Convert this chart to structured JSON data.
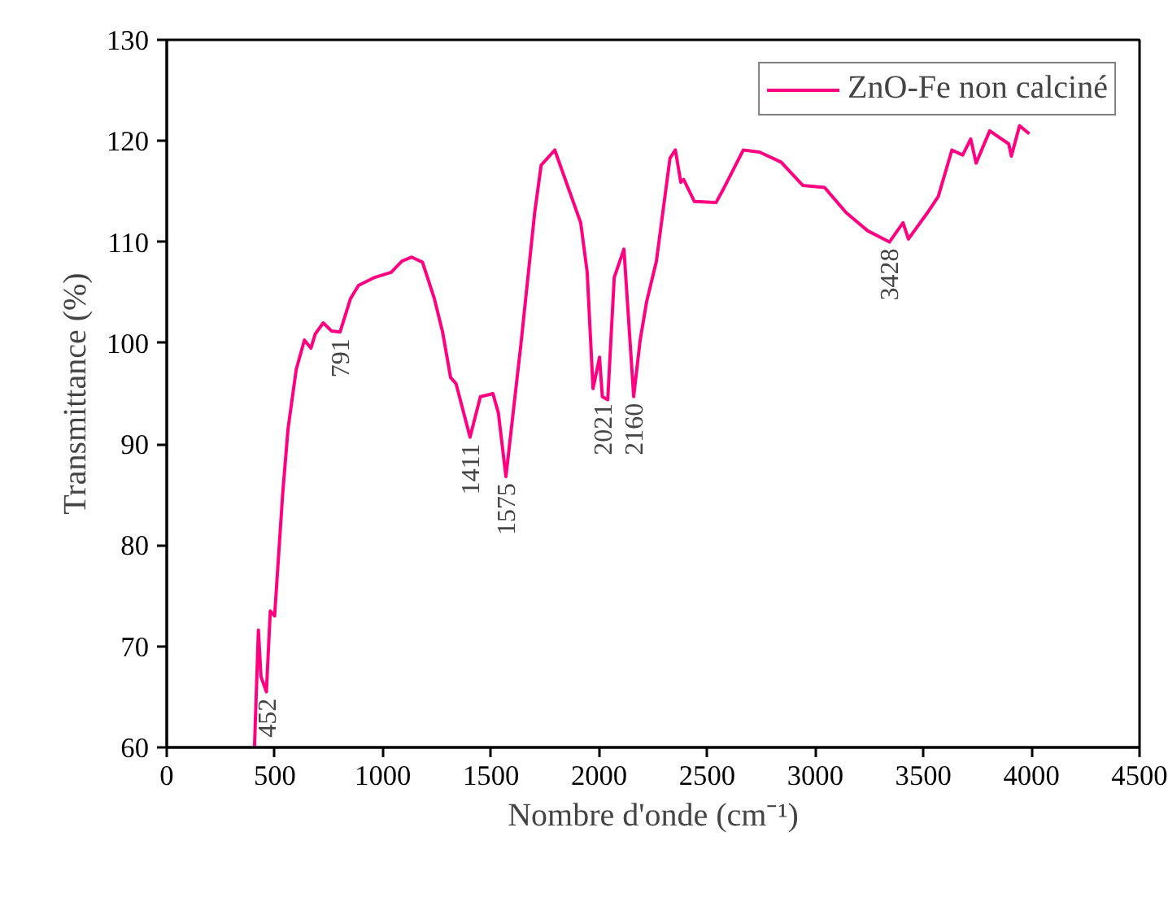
{
  "chart_data": {
    "type": "line",
    "xlabel": "Nombre d'onde (cm⁻¹)",
    "ylabel": "Transmittance (%)",
    "xlim": [
      0,
      4500
    ],
    "xticks": [
      0,
      500,
      1000,
      1500,
      2000,
      2500,
      3000,
      3500,
      4000,
      4500
    ],
    "ylim": [
      60,
      130
    ],
    "yticks": [
      60,
      70,
      80,
      90,
      100,
      110,
      120,
      130
    ],
    "grid": false,
    "legend": "top right",
    "marker": "none",
    "line_style": "solid",
    "series": [
      {
        "name": "ZnO-Fe non calciné",
        "color": "#ff0080",
        "x": [
          406,
          424,
          436,
          461,
          479,
          499,
          536,
          561,
          599,
          637,
          667,
          687,
          724,
          762,
          802,
          850,
          887,
          962,
          1038,
          1088,
          1133,
          1183,
          1238,
          1276,
          1313,
          1338,
          1403,
          1451,
          1509,
          1534,
          1569,
          1639,
          1702,
          1732,
          1795,
          1840,
          1915,
          1945,
          1972,
          2002,
          2015,
          2040,
          2070,
          2115,
          2160,
          2190,
          2220,
          2265,
          2328,
          2353,
          2378,
          2391,
          2441,
          2541,
          2579,
          2667,
          2742,
          2842,
          2942,
          3043,
          3143,
          3243,
          3343,
          3406,
          3431,
          3519,
          3569,
          3632,
          3682,
          3719,
          3744,
          3807,
          3895,
          3907,
          3945,
          3990
        ],
        "values": [
          60.1,
          71.6,
          67,
          65.5,
          73.5,
          73,
          85,
          91.5,
          97.4,
          100.3,
          99.5,
          100.9,
          102,
          101.2,
          101.1,
          104.4,
          105.7,
          106.5,
          107,
          108.1,
          108.5,
          108,
          104.4,
          101.1,
          96.6,
          96,
          90.7,
          94.7,
          95,
          93.1,
          86.8,
          100,
          112.9,
          117.6,
          119.1,
          116.4,
          111.9,
          107,
          95.5,
          98.6,
          94.7,
          94.4,
          106.5,
          109.3,
          94.7,
          100.3,
          104.1,
          108.1,
          118.3,
          119.1,
          115.9,
          116.2,
          114,
          113.9,
          115.4,
          119.1,
          118.9,
          117.9,
          115.6,
          115.4,
          112.9,
          111.1,
          110,
          111.9,
          110.3,
          112.9,
          114.5,
          119.1,
          118.6,
          120.2,
          117.8,
          121,
          119.7,
          118.5,
          121.5,
          120.7
        ]
      }
    ],
    "annotations": [
      {
        "text": "452",
        "x": 461,
        "y": 65.5
      },
      {
        "text": "791",
        "x": 802,
        "y": 101.1
      },
      {
        "text": "1411",
        "x": 1403,
        "y": 90.7
      },
      {
        "text": "1575",
        "x": 1569,
        "y": 86.8
      },
      {
        "text": "2021",
        "x": 2015,
        "y": 94.7
      },
      {
        "text": "2160",
        "x": 2160,
        "y": 94.7
      },
      {
        "text": "3428",
        "x": 3343,
        "y": 110
      }
    ]
  }
}
